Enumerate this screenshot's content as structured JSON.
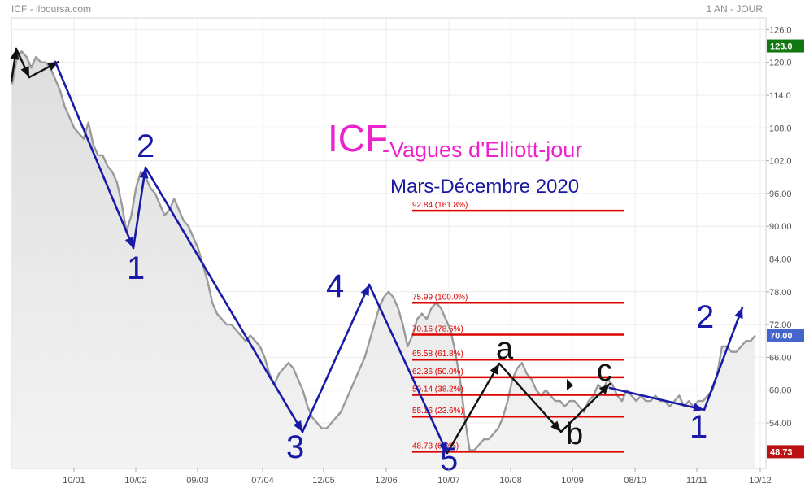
{
  "header": {
    "symbol_source": "ICF - ilboursa.com",
    "period": "1 AN - JOUR"
  },
  "annotations": {
    "title_main": "ICF",
    "title_sub": "-Vagues d'Elliott-jour",
    "subtitle": "Mars-Décembre 2020",
    "wave_labels": [
      "1",
      "2",
      "3",
      "4",
      "5",
      "a",
      "b",
      "c",
      "1",
      "2"
    ]
  },
  "colors": {
    "price_line": "#9a9a9a",
    "area_fill": "#e4e4e4",
    "fib_line": "#dd0000",
    "wave_blue": "#1a1aa8",
    "wave_black": "#111111",
    "title_magenta": "#ee22cc",
    "badge_high": "#117711",
    "badge_last": "#4466cc",
    "badge_low": "#bb1111"
  },
  "chart_data": {
    "type": "line",
    "x_tick_labels": [
      "10/01",
      "10/02",
      "09/03",
      "07/04",
      "12/05",
      "12/06",
      "10/07",
      "10/08",
      "10/09",
      "08/10",
      "11/11",
      "10/12"
    ],
    "y_ticks": [
      54.0,
      60.0,
      66.0,
      72.0,
      78.0,
      84.0,
      90.0,
      96.0,
      102.0,
      108.0,
      114.0,
      120.0,
      126.0
    ],
    "y_tick_labels": [
      "54.00",
      "60.00",
      "66.00",
      "72.00",
      "78.00",
      "84.00",
      "90.00",
      "96.00",
      "102.0",
      "108.0",
      "114.0",
      "120.0",
      "126.0"
    ],
    "ylim": [
      46.0,
      127.5
    ],
    "price_badges": [
      {
        "label": "123.0",
        "value": 123.0,
        "kind": "high"
      },
      {
        "label": "70.00",
        "value": 70.0,
        "kind": "last"
      },
      {
        "label": "48.73",
        "value": 48.73,
        "kind": "low"
      }
    ],
    "fib_levels": [
      {
        "label": "92.84  (161.8%)",
        "value": 92.84
      },
      {
        "label": "75.99  (100.0%)",
        "value": 75.99
      },
      {
        "label": "70.16  (78.6%)",
        "value": 70.16
      },
      {
        "label": "65.58  (61.8%)",
        "value": 65.58
      },
      {
        "label": "62.36  (50.0%)",
        "value": 62.36
      },
      {
        "label": "59.14  (38.2%)",
        "value": 59.14
      },
      {
        "label": "55.16  (23.6%)",
        "value": 55.16
      },
      {
        "label": "48.73  (0.0%)",
        "value": 48.73
      }
    ],
    "series": [
      {
        "values": [
          116,
          121,
          122,
          121,
          119,
          121,
          120,
          120,
          119,
          117,
          115,
          112,
          110,
          108,
          107,
          106,
          109,
          105,
          103,
          103,
          101,
          100,
          98,
          94,
          89,
          92,
          97,
          100,
          99,
          97,
          96,
          94,
          92,
          93,
          95,
          93,
          91,
          90,
          88,
          86,
          83,
          80,
          76,
          74,
          73,
          72,
          72,
          71,
          70,
          69,
          70,
          69,
          68,
          66,
          63,
          61,
          63,
          64,
          65,
          64,
          62,
          60,
          57,
          55,
          54,
          53,
          53,
          54,
          55,
          56,
          58,
          60,
          62,
          64,
          66,
          69,
          72,
          75,
          77,
          78,
          77,
          75,
          72,
          68,
          70,
          73,
          74,
          73,
          75,
          76,
          75,
          73,
          71,
          67,
          62,
          55,
          49,
          49,
          50,
          51,
          51,
          52,
          53,
          55,
          58,
          62,
          64,
          65,
          63,
          62,
          60,
          59,
          60,
          59,
          58,
          58,
          57,
          58,
          58,
          57,
          56,
          58,
          59,
          61,
          60,
          62,
          61,
          59,
          58,
          60,
          59,
          58,
          59,
          58,
          58,
          59,
          58,
          58,
          57,
          58,
          59,
          57,
          58,
          57,
          58,
          58,
          59,
          60,
          63,
          68,
          68,
          67,
          67,
          68,
          69,
          69,
          70
        ]
      }
    ]
  }
}
